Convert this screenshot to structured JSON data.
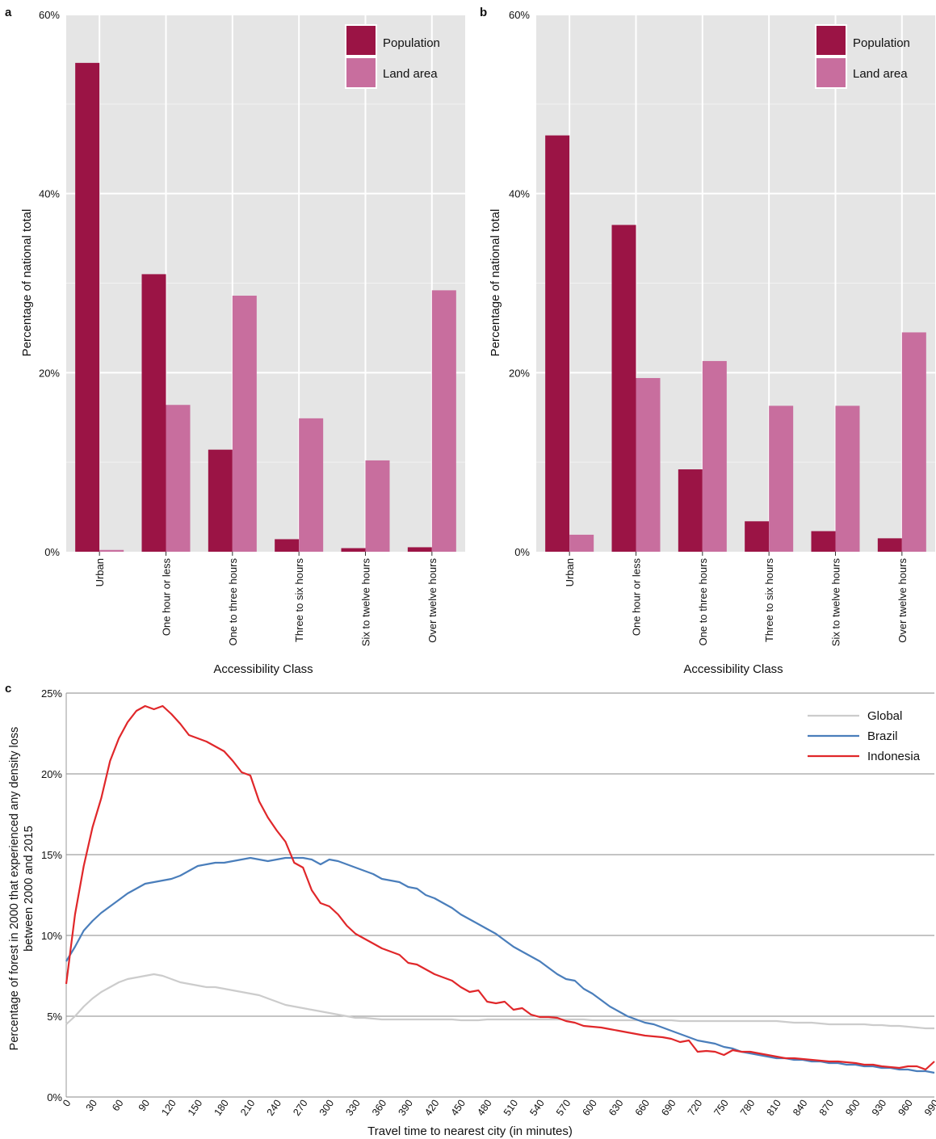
{
  "panels": {
    "a": {
      "label": "a"
    },
    "b": {
      "label": "b"
    },
    "c": {
      "label": "c"
    }
  },
  "chart_data": [
    {
      "type": "bar",
      "panel": "a",
      "categories": [
        "Urban",
        "One hour or less",
        "One to three hours",
        "Three to six hours",
        "Six to twelve hours",
        "Over twelve hours"
      ],
      "series": [
        {
          "name": "Population",
          "color": "#9b1445",
          "values": [
            54.6,
            31.0,
            11.4,
            1.4,
            0.4,
            0.5
          ]
        },
        {
          "name": "Land area",
          "color": "#c86e9e",
          "values": [
            0.2,
            16.4,
            28.6,
            14.9,
            10.2,
            29.2
          ]
        }
      ],
      "xlabel": "Accessibility Class",
      "ylabel": "Percentage of national total",
      "ylim": [
        0,
        60
      ],
      "yticks": [
        "0%",
        "20%",
        "40%",
        "60%"
      ],
      "grid": true,
      "legend_position": "top-right"
    },
    {
      "type": "bar",
      "panel": "b",
      "categories": [
        "Urban",
        "One hour or less",
        "One to three hours",
        "Three to six hours",
        "Six to twelve hours",
        "Over twelve hours"
      ],
      "series": [
        {
          "name": "Population",
          "color": "#9b1445",
          "values": [
            46.5,
            36.5,
            9.2,
            3.4,
            2.3,
            1.5
          ]
        },
        {
          "name": "Land area",
          "color": "#c86e9e",
          "values": [
            1.9,
            19.4,
            21.3,
            16.3,
            16.3,
            24.5
          ]
        }
      ],
      "xlabel": "Accessibility Class",
      "ylabel": "Percentage of national total",
      "ylim": [
        0,
        60
      ],
      "yticks": [
        "0%",
        "20%",
        "40%",
        "60%"
      ],
      "grid": true,
      "legend_position": "top-right"
    },
    {
      "type": "line",
      "panel": "c",
      "x": [
        0,
        10,
        20,
        30,
        40,
        50,
        60,
        70,
        80,
        90,
        100,
        110,
        120,
        130,
        140,
        150,
        160,
        170,
        180,
        190,
        200,
        210,
        220,
        230,
        240,
        250,
        260,
        270,
        280,
        290,
        300,
        310,
        320,
        330,
        340,
        350,
        360,
        370,
        380,
        390,
        400,
        410,
        420,
        430,
        440,
        450,
        460,
        470,
        480,
        490,
        500,
        510,
        520,
        530,
        540,
        550,
        560,
        570,
        580,
        590,
        600,
        610,
        620,
        630,
        640,
        650,
        660,
        670,
        680,
        690,
        700,
        710,
        720,
        730,
        740,
        750,
        760,
        770,
        780,
        790,
        800,
        810,
        820,
        830,
        840,
        850,
        860,
        870,
        880,
        890,
        900,
        910,
        920,
        930,
        940,
        950,
        960,
        970,
        980,
        990
      ],
      "series": [
        {
          "name": "Global",
          "color": "#cccccc",
          "values": [
            4.5,
            5.0,
            5.6,
            6.1,
            6.5,
            6.8,
            7.1,
            7.3,
            7.4,
            7.5,
            7.6,
            7.5,
            7.3,
            7.1,
            7.0,
            6.9,
            6.8,
            6.8,
            6.7,
            6.6,
            6.5,
            6.4,
            6.3,
            6.1,
            5.9,
            5.7,
            5.6,
            5.5,
            5.4,
            5.3,
            5.2,
            5.1,
            5.0,
            4.9,
            4.9,
            4.85,
            4.8,
            4.8,
            4.8,
            4.8,
            4.8,
            4.8,
            4.8,
            4.8,
            4.8,
            4.75,
            4.75,
            4.75,
            4.8,
            4.8,
            4.8,
            4.8,
            4.8,
            4.8,
            4.8,
            4.8,
            4.8,
            4.8,
            4.8,
            4.8,
            4.75,
            4.75,
            4.75,
            4.75,
            4.75,
            4.75,
            4.75,
            4.75,
            4.75,
            4.75,
            4.7,
            4.7,
            4.7,
            4.7,
            4.7,
            4.7,
            4.7,
            4.7,
            4.7,
            4.7,
            4.7,
            4.7,
            4.65,
            4.6,
            4.6,
            4.6,
            4.55,
            4.5,
            4.5,
            4.5,
            4.5,
            4.5,
            4.45,
            4.45,
            4.4,
            4.4,
            4.35,
            4.3,
            4.25,
            4.25
          ]
        },
        {
          "name": "Brazil",
          "color": "#4a7ebb",
          "values": [
            8.4,
            9.3,
            10.3,
            10.9,
            11.4,
            11.8,
            12.2,
            12.6,
            12.9,
            13.2,
            13.3,
            13.4,
            13.5,
            13.7,
            14.0,
            14.3,
            14.4,
            14.5,
            14.5,
            14.6,
            14.7,
            14.8,
            14.7,
            14.6,
            14.7,
            14.8,
            14.8,
            14.8,
            14.7,
            14.4,
            14.7,
            14.6,
            14.4,
            14.2,
            14.0,
            13.8,
            13.5,
            13.4,
            13.3,
            13.0,
            12.9,
            12.5,
            12.3,
            12.0,
            11.7,
            11.3,
            11.0,
            10.7,
            10.4,
            10.1,
            9.7,
            9.3,
            9.0,
            8.7,
            8.4,
            8.0,
            7.6,
            7.3,
            7.2,
            6.7,
            6.4,
            6.0,
            5.6,
            5.3,
            5.0,
            4.8,
            4.6,
            4.5,
            4.3,
            4.1,
            3.9,
            3.7,
            3.5,
            3.4,
            3.3,
            3.1,
            3.0,
            2.8,
            2.7,
            2.6,
            2.5,
            2.4,
            2.4,
            2.3,
            2.3,
            2.2,
            2.2,
            2.1,
            2.1,
            2.0,
            2.0,
            1.9,
            1.9,
            1.8,
            1.8,
            1.7,
            1.7,
            1.6,
            1.6,
            1.5
          ]
        },
        {
          "name": "Indonesia",
          "color": "#e0272a",
          "values": [
            7.0,
            11.3,
            14.3,
            16.7,
            18.5,
            20.8,
            22.2,
            23.2,
            23.9,
            24.2,
            24.0,
            24.2,
            23.7,
            23.1,
            22.4,
            22.2,
            22.0,
            21.7,
            21.4,
            20.8,
            20.1,
            19.9,
            18.3,
            17.3,
            16.5,
            15.8,
            14.5,
            14.2,
            12.8,
            12.0,
            11.8,
            11.3,
            10.6,
            10.1,
            9.8,
            9.5,
            9.2,
            9.0,
            8.8,
            8.3,
            8.2,
            7.9,
            7.6,
            7.4,
            7.2,
            6.8,
            6.5,
            6.6,
            5.9,
            5.8,
            5.9,
            5.4,
            5.5,
            5.1,
            4.95,
            4.95,
            4.9,
            4.7,
            4.6,
            4.4,
            4.35,
            4.3,
            4.2,
            4.1,
            4.0,
            3.9,
            3.8,
            3.75,
            3.7,
            3.6,
            3.4,
            3.5,
            2.8,
            2.85,
            2.8,
            2.6,
            2.9,
            2.8,
            2.8,
            2.7,
            2.6,
            2.5,
            2.4,
            2.4,
            2.35,
            2.3,
            2.25,
            2.2,
            2.2,
            2.15,
            2.1,
            2.0,
            2.0,
            1.9,
            1.85,
            1.8,
            1.9,
            1.9,
            1.7,
            2.2
          ]
        }
      ],
      "xlabel": "Travel time to nearest city (in minutes)",
      "ylabel": "Percentage of forest in 2000 that experienced any density loss between 2000 and 2015",
      "xlim": [
        0,
        990
      ],
      "ylim": [
        0,
        25
      ],
      "xticks": [
        "0",
        "30",
        "60",
        "90",
        "120",
        "150",
        "180",
        "210",
        "240",
        "270",
        "300",
        "330",
        "360",
        "390",
        "420",
        "450",
        "480",
        "510",
        "540",
        "570",
        "600",
        "630",
        "660",
        "690",
        "720",
        "750",
        "780",
        "810",
        "840",
        "870",
        "900",
        "930",
        "960",
        "990"
      ],
      "yticks": [
        "0%",
        "5%",
        "10%",
        "15%",
        "20%",
        "25%"
      ],
      "grid": true,
      "legend_position": "top-right"
    }
  ]
}
